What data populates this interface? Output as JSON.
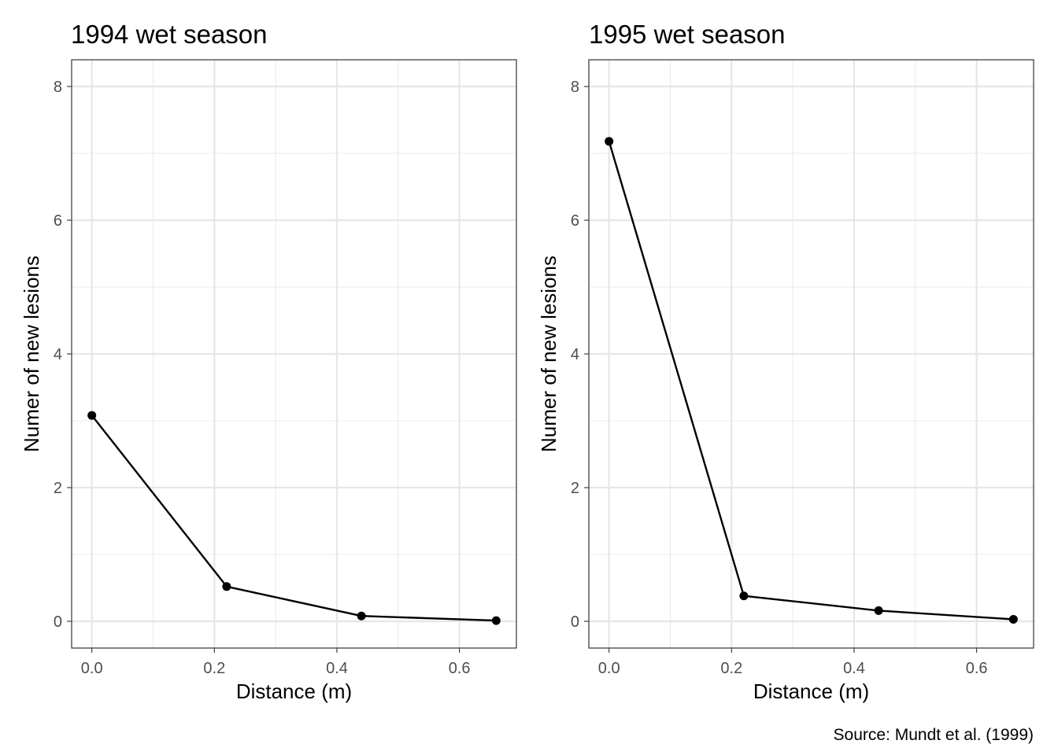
{
  "caption": "Source: Mundt et al. (1999)",
  "chart_data": [
    {
      "type": "line",
      "title": "1994 wet season",
      "xlabel": "Distance (m)",
      "ylabel": "Numer of new lesions",
      "x": [
        0.0,
        0.22,
        0.44,
        0.66
      ],
      "values": [
        3.08,
        0.52,
        0.08,
        0.01
      ],
      "xlim": [
        -0.033,
        0.693
      ],
      "ylim": [
        -0.4,
        8.4
      ],
      "x_ticks": [
        0.0,
        0.2,
        0.4,
        0.6
      ],
      "x_tick_labels": [
        "0.0",
        "0.2",
        "0.4",
        "0.6"
      ],
      "y_ticks": [
        0,
        2,
        4,
        6,
        8
      ],
      "y_tick_labels": [
        "0",
        "2",
        "4",
        "6",
        "8"
      ],
      "grid": true,
      "line_color": "#000000"
    },
    {
      "type": "line",
      "title": "1995 wet season",
      "xlabel": "Distance (m)",
      "ylabel": "Numer of new lesions",
      "x": [
        0.0,
        0.22,
        0.44,
        0.66
      ],
      "values": [
        7.18,
        0.38,
        0.16,
        0.03
      ],
      "xlim": [
        -0.033,
        0.693
      ],
      "ylim": [
        -0.4,
        8.4
      ],
      "x_ticks": [
        0.0,
        0.2,
        0.4,
        0.6
      ],
      "x_tick_labels": [
        "0.0",
        "0.2",
        "0.4",
        "0.6"
      ],
      "y_ticks": [
        0,
        2,
        4,
        6,
        8
      ],
      "y_tick_labels": [
        "0",
        "2",
        "4",
        "6",
        "8"
      ],
      "grid": true,
      "line_color": "#000000"
    }
  ]
}
